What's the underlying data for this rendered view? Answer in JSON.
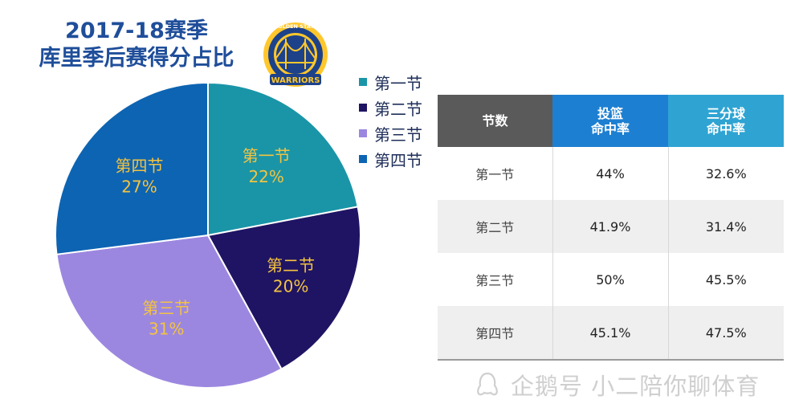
{
  "title": {
    "line1": "2017-18赛季",
    "line2": "库里季后赛得分占比"
  },
  "logo": {
    "text_top": "GOLDEN STATE",
    "text_bottom": "WARRIORS",
    "colors": {
      "blue": "#1d428a",
      "gold": "#ffc72c"
    }
  },
  "chart_data": {
    "type": "pie",
    "categories": [
      "第一节",
      "第二节",
      "第三节",
      "第四节"
    ],
    "values": [
      22,
      20,
      31,
      27
    ],
    "labels": [
      "22%",
      "20%",
      "31%",
      "27%"
    ],
    "colors": [
      "#1a95a8",
      "#1f1463",
      "#9c87e0",
      "#0d64b2"
    ],
    "label_color": "#f3c341",
    "legend_position": "right"
  },
  "legend": [
    {
      "label": "第一节",
      "color": "#1a95a8"
    },
    {
      "label": "第二节",
      "color": "#1f1463"
    },
    {
      "label": "第三节",
      "color": "#9c87e0"
    },
    {
      "label": "第四节",
      "color": "#0d64b2"
    }
  ],
  "table": {
    "headers": [
      [
        "节数"
      ],
      [
        "投篮",
        "命中率"
      ],
      [
        "三分球",
        "命中率"
      ]
    ],
    "rows": [
      [
        "第一节",
        "44%",
        "32.6%"
      ],
      [
        "第二节",
        "41.9%",
        "31.4%"
      ],
      [
        "第三节",
        "50%",
        "45.5%"
      ],
      [
        "第四节",
        "45.1%",
        "47.5%"
      ]
    ]
  },
  "watermark": {
    "text": "企鹅号 小二陪你聊体育"
  }
}
